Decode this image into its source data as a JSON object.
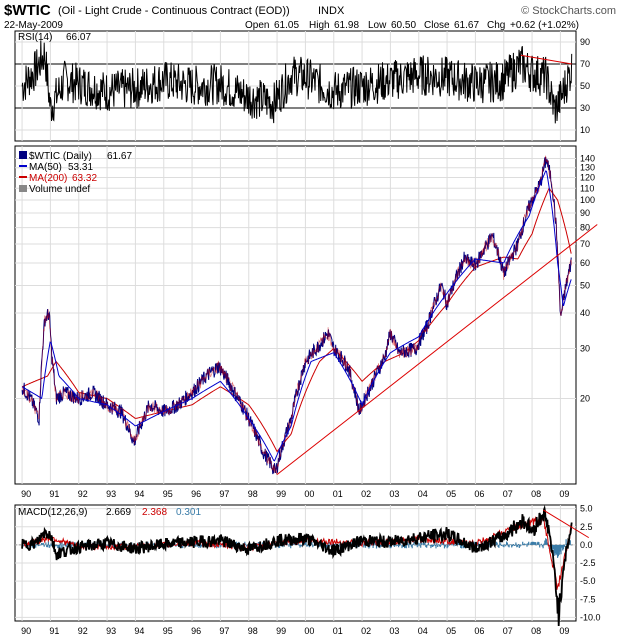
{
  "header": {
    "symbol": "$WTIC",
    "description": "(Oil - Light Crude - Continuous Contract (EOD))",
    "exchange": "INDX",
    "brand": "© StockCharts.com",
    "date": "22-May-2009",
    "open_label": "Open",
    "open": "61.05",
    "high_label": "High",
    "high": "61.98",
    "low_label": "Low",
    "low": "60.50",
    "close_label": "Close",
    "close": "61.67",
    "chg_label": "Chg",
    "chg": "+0.62 (+1.02%)"
  },
  "colors": {
    "price": "#000080",
    "ma50": "#0000cc",
    "ma200": "#cc0000",
    "trendline": "#dd0000",
    "macd": "#000000",
    "signal": "#cc0000",
    "histogram": "#3a7ca8",
    "grid": "#dddddd"
  },
  "chart_data": [
    {
      "type": "line",
      "panel": "RSI",
      "legend": "RSI(14)",
      "legend_value": "66.07",
      "ylim": [
        0,
        100
      ],
      "yticks": [
        "90",
        "70",
        "50",
        "30",
        "10"
      ],
      "ytick_values": [
        90,
        70,
        50,
        30,
        10
      ],
      "reference_lines": [
        70,
        30
      ],
      "series": [
        {
          "name": "RSI(14)",
          "x": [
            1990.0,
            1990.5,
            1990.8,
            1991.0,
            1991.5,
            1992.0,
            1993.0,
            1994.0,
            1995.0,
            1996.0,
            1997.0,
            1998.0,
            1998.9,
            1999.5,
            2000.0,
            2001.0,
            2002.0,
            2003.0,
            2004.0,
            2005.0,
            2006.0,
            2007.0,
            2007.6,
            2008.0,
            2008.5,
            2008.8,
            2009.0,
            2009.4
          ],
          "y": [
            50,
            65,
            80,
            30,
            55,
            52,
            45,
            48,
            55,
            50,
            52,
            40,
            35,
            60,
            58,
            45,
            50,
            55,
            60,
            58,
            52,
            55,
            70,
            62,
            58,
            28,
            38,
            66.07
          ]
        }
      ],
      "annotations": [
        {
          "type": "trendline",
          "from": [
            2007.6,
            78
          ],
          "to": [
            2009.4,
            70
          ]
        }
      ]
    },
    {
      "type": "line",
      "panel": "Price",
      "scale": "log",
      "legend": [
        {
          "label": "$WTIC (Daily)",
          "value": "61.67"
        },
        {
          "label": "MA(50)",
          "value": "53.31"
        },
        {
          "label": "MA(200)",
          "value": "63.32"
        },
        {
          "label": "Volume undef",
          "value": ""
        }
      ],
      "ylim": [
        10,
        155
      ],
      "yticks": [
        "140",
        "130",
        "120",
        "110",
        "100",
        "90",
        "80",
        "70",
        "60",
        "50",
        "40",
        "30",
        "20"
      ],
      "ytick_values": [
        140,
        130,
        120,
        110,
        100,
        90,
        80,
        70,
        60,
        50,
        40,
        30,
        20
      ],
      "xticks": [
        "90",
        "91",
        "92",
        "93",
        "94",
        "95",
        "96",
        "97",
        "98",
        "99",
        "00",
        "01",
        "02",
        "03",
        "04",
        "05",
        "06",
        "07",
        "08",
        "09"
      ],
      "xtick_values": [
        1990,
        1991,
        1992,
        1993,
        1994,
        1995,
        1996,
        1997,
        1998,
        1999,
        2000,
        2001,
        2002,
        2003,
        2004,
        2005,
        2006,
        2007,
        2008,
        2009
      ],
      "series": [
        {
          "name": "$WTIC (Daily)",
          "x": [
            1990.0,
            1990.3,
            1990.6,
            1990.8,
            1990.95,
            1991.05,
            1991.2,
            1991.5,
            1992.0,
            1992.5,
            1993.0,
            1993.5,
            1993.95,
            1994.5,
            1995.0,
            1995.5,
            1996.0,
            1996.5,
            1996.95,
            1997.5,
            1998.0,
            1998.5,
            1998.95,
            1999.5,
            2000.0,
            2000.5,
            2000.8,
            2001.0,
            2001.5,
            2001.9,
            2002.3,
            2002.8,
            2003.0,
            2003.3,
            2003.9,
            2004.3,
            2004.8,
            2005.0,
            2005.6,
            2006.0,
            2006.6,
            2007.0,
            2007.5,
            2007.9,
            2008.3,
            2008.5,
            2008.7,
            2008.85,
            2009.0,
            2009.2,
            2009.4
          ],
          "y": [
            22,
            20,
            17,
            38,
            40,
            28,
            20,
            21,
            20,
            21,
            19,
            18,
            14,
            19,
            18,
            19,
            21,
            24,
            26,
            21,
            17,
            13,
            11,
            17,
            27,
            31,
            34,
            30,
            26,
            18,
            22,
            28,
            34,
            29,
            30,
            36,
            50,
            43,
            62,
            59,
            75,
            55,
            70,
            95,
            115,
            140,
            115,
            80,
            38,
            50,
            61.67
          ]
        },
        {
          "name": "MA(50)",
          "x": [
            1990.0,
            1990.7,
            1991.0,
            1991.3,
            1992.0,
            1993.0,
            1994.0,
            1995.0,
            1996.0,
            1997.0,
            1998.0,
            1998.9,
            1999.5,
            2000.2,
            2001.0,
            2002.0,
            2002.5,
            2003.0,
            2004.0,
            2005.0,
            2006.0,
            2007.0,
            2007.9,
            2008.5,
            2008.9,
            2009.1,
            2009.4
          ],
          "y": [
            22,
            20,
            32,
            24,
            20,
            19,
            16,
            18,
            20,
            23,
            17,
            12,
            16,
            27,
            29,
            19,
            24,
            29,
            33,
            47,
            62,
            60,
            88,
            128,
            60,
            42,
            53.31
          ]
        },
        {
          "name": "MA(200)",
          "x": [
            1990.0,
            1990.9,
            1991.2,
            1992.0,
            1993.0,
            1994.0,
            1995.0,
            1996.0,
            1997.0,
            1998.0,
            1999.0,
            1999.5,
            2000.5,
            2001.0,
            2002.0,
            2002.8,
            2003.5,
            2004.0,
            2005.0,
            2006.0,
            2007.0,
            2007.5,
            2008.0,
            2008.6,
            2008.9,
            2009.1,
            2009.4
          ],
          "y": [
            22,
            24,
            27,
            21,
            20,
            17,
            18,
            19,
            22,
            19,
            13,
            15,
            27,
            30,
            23,
            27,
            29,
            32,
            43,
            58,
            63,
            62,
            76,
            110,
            100,
            85,
            63.32
          ]
        }
      ],
      "annotations": [
        {
          "type": "trendline",
          "from": [
            1999.0,
            10.8
          ],
          "to": [
            2010.3,
            82
          ]
        }
      ]
    },
    {
      "type": "line",
      "panel": "MACD",
      "legend": "MACD(12,26,9)",
      "legend_values": [
        "2.669",
        "2.368",
        "0.301"
      ],
      "ylim": [
        -10.5,
        5.5
      ],
      "yticks": [
        "5.0",
        "2.5",
        "0.0",
        "-2.5",
        "-5.0",
        "-7.5",
        "-10.0"
      ],
      "ytick_values": [
        5.0,
        2.5,
        0.0,
        -2.5,
        -5.0,
        -7.5,
        -10.0
      ],
      "xticks": [
        "90",
        "91",
        "92",
        "93",
        "94",
        "95",
        "96",
        "97",
        "98",
        "99",
        "00",
        "01",
        "02",
        "03",
        "04",
        "05",
        "06",
        "07",
        "08",
        "09"
      ],
      "xtick_values": [
        1990,
        1991,
        1992,
        1993,
        1994,
        1995,
        1996,
        1997,
        1998,
        1999,
        2000,
        2001,
        2002,
        2003,
        2004,
        2005,
        2006,
        2007,
        2008,
        2009
      ],
      "series": [
        {
          "name": "MACD",
          "x": [
            1990.0,
            1990.5,
            1990.8,
            1991.0,
            1991.2,
            1992.0,
            1993.0,
            1994.0,
            1995.0,
            1996.0,
            1997.0,
            1998.0,
            1999.0,
            2000.0,
            2001.0,
            2002.0,
            2003.0,
            2004.0,
            2005.0,
            2006.0,
            2007.0,
            2007.7,
            2008.0,
            2008.4,
            2008.6,
            2008.8,
            2008.95,
            2009.1,
            2009.4
          ],
          "y": [
            0,
            0.2,
            1.8,
            1.5,
            -1.2,
            -0.3,
            0.2,
            -0.5,
            0.1,
            0.4,
            0.6,
            -0.6,
            0.6,
            0.9,
            -0.8,
            0.6,
            0.4,
            1.0,
            1.5,
            -0.5,
            1.2,
            3.5,
            1.8,
            4.5,
            2.0,
            -4.0,
            -9.8,
            -3.0,
            2.669
          ]
        },
        {
          "name": "Signal",
          "x": [
            1990.0,
            1991.0,
            1992.0,
            1994.0,
            1996.0,
            1998.0,
            2000.0,
            2002.0,
            2004.0,
            2006.0,
            2007.7,
            2008.4,
            2008.9,
            2009.1,
            2009.4
          ],
          "y": [
            0,
            1.0,
            -0.2,
            -0.3,
            0.3,
            -0.4,
            0.7,
            0.2,
            0.8,
            0.2,
            2.8,
            3.5,
            -6.0,
            -2.5,
            2.368
          ]
        },
        {
          "name": "Histogram",
          "x": [
            2008.5,
            2008.7,
            2008.9,
            2009.0,
            2009.2,
            2009.4
          ],
          "y": [
            0.5,
            -0.8,
            -1.5,
            -1.0,
            0.4,
            0.301
          ]
        }
      ],
      "annotations": [
        {
          "type": "trendline",
          "from": [
            2008.4,
            4.8
          ],
          "to": [
            2010.0,
            1.0
          ]
        }
      ]
    }
  ]
}
